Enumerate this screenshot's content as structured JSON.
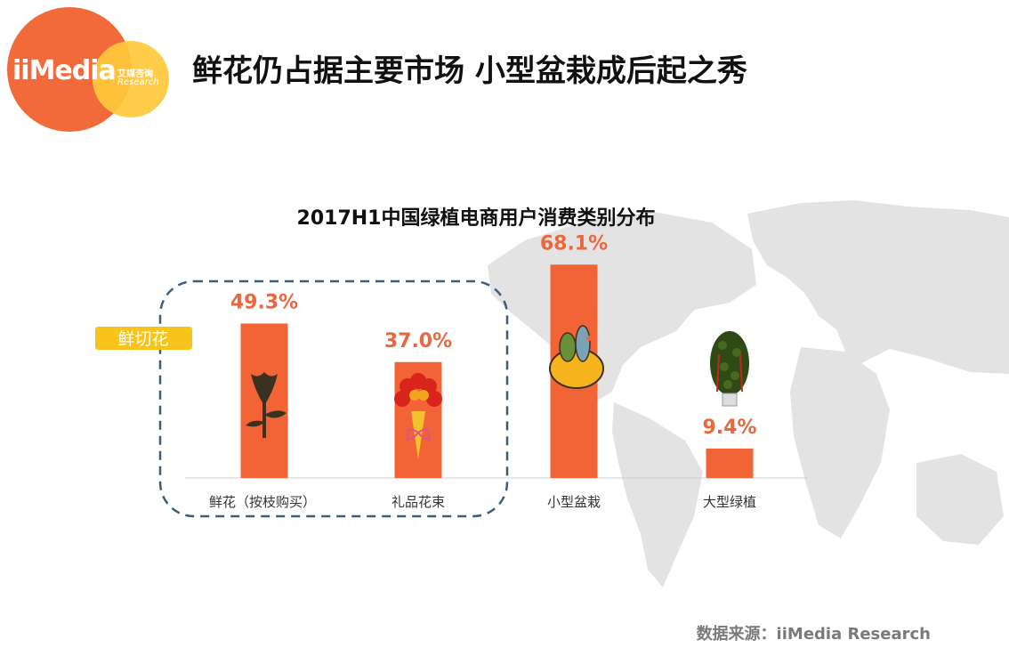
{
  "header": {
    "logo_word": "iiMedia",
    "logo_cn": "艾媒咨询",
    "logo_sub": "Research",
    "title": "鲜花仍占据主要市场 小型盆栽成后起之秀"
  },
  "group_tag": "鲜切花",
  "source": "数据来源：iiMedia Research",
  "colors": {
    "bar": "#f26336",
    "label": "#e8683f",
    "tag": "#f8c41c",
    "dash": "#3f5d78"
  },
  "chart_data": {
    "type": "bar",
    "title": "2017H1中国绿植电商用户消费类别分布",
    "categories": [
      "鲜花（按枝购买）",
      "礼品花束",
      "小型盆栽",
      "大型绿植"
    ],
    "values": [
      49.3,
      37.0,
      68.1,
      9.4
    ],
    "value_labels": [
      "49.3%",
      "37.0%",
      "68.1%",
      "9.4%"
    ],
    "ylim": [
      0,
      75
    ],
    "grid": false,
    "icons": [
      "rose-icon",
      "bouquet-icon",
      "potted-cactus-icon",
      "large-tree-icon"
    ]
  }
}
